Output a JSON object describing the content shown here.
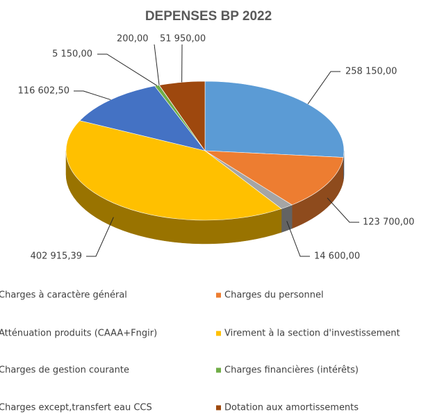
{
  "chart_data": {
    "type": "pie3d",
    "title": "DEPENSES BP 2022",
    "categories": [
      "Charges à caractère général",
      "Charges du personnel",
      "Atténuation  produits (CAAA+Fngir)",
      "Virement à la section d'investissement",
      "Charges de gestion courante",
      "Charges financières  (intérêts)",
      "Charges except,transfert eau CCS",
      "Dotation aux amortissements"
    ],
    "values": [
      258150,
      123700,
      14600,
      402915.39,
      116602.5,
      5150,
      200,
      51950
    ],
    "value_labels": [
      "258 150,00",
      "123 700,00",
      "14 600,00",
      "402 915,39",
      "116 602,50",
      "5 150,00",
      "200,00",
      "51 950,00"
    ],
    "colors": [
      "#5b9bd5",
      "#ed7d31",
      "#a5a5a5",
      "#ffc000",
      "#4472c4",
      "#70ad47",
      "#264478",
      "#9e480e"
    ],
    "legend": "bottom"
  }
}
